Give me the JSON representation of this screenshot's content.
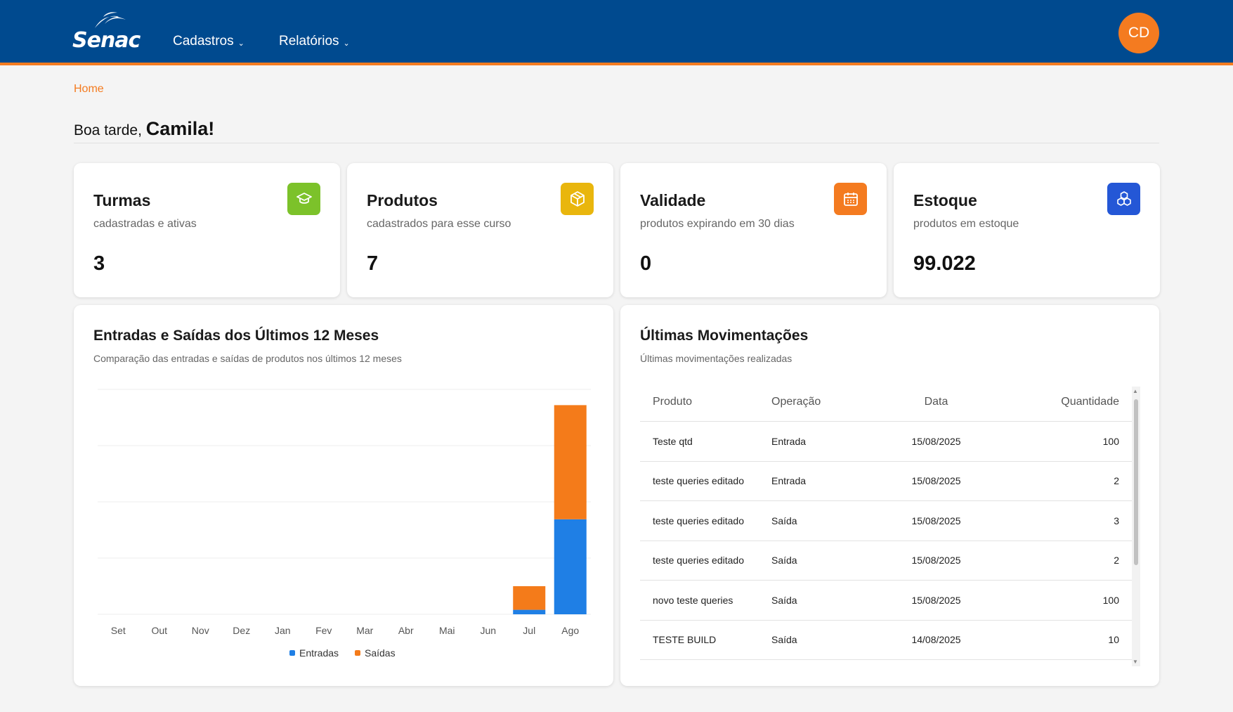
{
  "header": {
    "logo_text": "Senac",
    "nav": [
      {
        "label": "Cadastros"
      },
      {
        "label": "Relatórios"
      }
    ],
    "avatar_initials": "CD"
  },
  "breadcrumb": "Home",
  "greeting": {
    "prefix": "Boa tarde,",
    "name": "Camila!"
  },
  "stats": [
    {
      "title": "Turmas",
      "subtitle": "cadastradas e ativas",
      "value": "3",
      "icon": "graduation-cap-icon",
      "color": "#7cc22a"
    },
    {
      "title": "Produtos",
      "subtitle": "cadastrados para esse curso",
      "value": "7",
      "icon": "box-icon",
      "color": "#e9b60d"
    },
    {
      "title": "Validade",
      "subtitle": "produtos expirando em 30 dias",
      "value": "0",
      "icon": "calendar-icon",
      "color": "#f47b20"
    },
    {
      "title": "Estoque",
      "subtitle": "produtos em estoque",
      "value": "99.022",
      "icon": "boxes-icon",
      "color": "#2457d6"
    }
  ],
  "chart_card": {
    "title": "Entradas e Saídas dos Últimos 12 Meses",
    "subtitle": "Comparação das entradas e saídas de produtos nos últimos 12 meses"
  },
  "chart_data": {
    "type": "bar",
    "stacked": true,
    "categories": [
      "Set",
      "Out",
      "Nov",
      "Dez",
      "Jan",
      "Fev",
      "Mar",
      "Abr",
      "Mai",
      "Jun",
      "Jul",
      "Ago"
    ],
    "series": [
      {
        "name": "Entradas",
        "color": "#1f7fe5",
        "values": [
          0,
          0,
          0,
          0,
          0,
          0,
          0,
          0,
          0,
          0,
          8,
          169
        ]
      },
      {
        "name": "Saídas",
        "color": "#f47b1a",
        "values": [
          0,
          0,
          0,
          0,
          0,
          0,
          0,
          0,
          0,
          0,
          42,
          203
        ]
      }
    ],
    "ylim": [
      0,
      400
    ],
    "grid": true,
    "legend": "bottom"
  },
  "table_card": {
    "title": "Últimas Movimentações",
    "subtitle": "Últimas movimentações realizadas",
    "columns": [
      "Produto",
      "Operação",
      "Data",
      "Quantidade"
    ],
    "rows": [
      [
        "Teste qtd",
        "Entrada",
        "15/08/2025",
        "100"
      ],
      [
        "teste queries editado",
        "Entrada",
        "15/08/2025",
        "2"
      ],
      [
        "teste queries editado",
        "Saída",
        "15/08/2025",
        "3"
      ],
      [
        "teste queries editado",
        "Saída",
        "15/08/2025",
        "2"
      ],
      [
        "novo teste queries",
        "Saída",
        "15/08/2025",
        "100"
      ],
      [
        "TESTE BUILD",
        "Saída",
        "14/08/2025",
        "10"
      ]
    ]
  }
}
